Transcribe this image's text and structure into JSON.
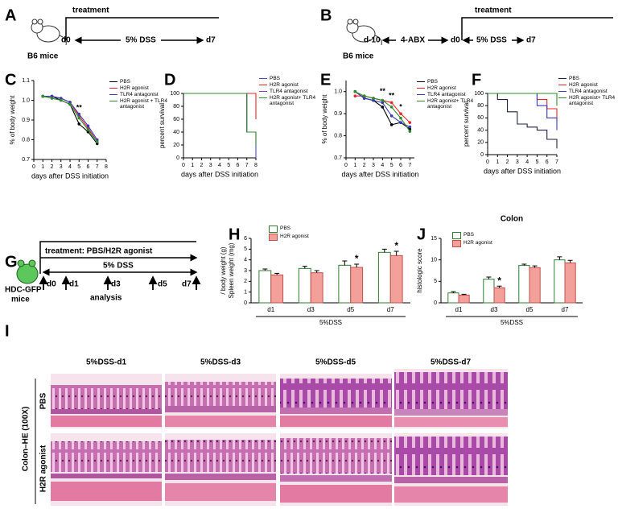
{
  "panels": {
    "A": {
      "label": "A",
      "mice": "B6 mice",
      "treatment": "treatment",
      "start": "d0",
      "regimen": "5% DSS",
      "end": "d7"
    },
    "B": {
      "label": "B",
      "mice": "B6 mice",
      "treatment": "treatment",
      "pre_start": "d-10",
      "pretreatment": "4-ABX",
      "start": "d0",
      "regimen": "5% DSS",
      "end": "d7"
    },
    "G": {
      "label": "G",
      "treatment": "treatment: PBS/H2R agonist",
      "regimen": "5% DSS",
      "days": [
        "d0",
        "d1",
        "d3",
        "d5",
        "d7"
      ],
      "analysis": "analysis",
      "mice": [
        "HDC-GFP",
        "mice"
      ]
    },
    "I": {
      "label": "I",
      "columns": [
        "5%DSS-d1",
        "5%DSS-d3",
        "5%DSS-d5",
        "5%DSS-d7"
      ],
      "rows": [
        "PBS",
        "H2R agonist"
      ],
      "stain": "Colon–HE (100X)"
    }
  },
  "chart_data": [
    {
      "panel": "C",
      "type": "line",
      "xlabel": "days after DSS initiation",
      "ylabel": "% of body weight",
      "x": [
        1,
        2,
        3,
        4,
        5,
        6,
        7
      ],
      "xlim": [
        0,
        8
      ],
      "xticks": [
        0,
        1,
        2,
        3,
        4,
        5,
        6,
        7,
        8
      ],
      "ylim": [
        0.7,
        1.1
      ],
      "yticks": [
        0.7,
        0.8,
        0.9,
        {
          "value": 1,
          "label": "1.0"
        },
        1.1
      ],
      "series": [
        {
          "name": "PBS",
          "color": "#000000",
          "values": [
            1.02,
            1.02,
            1.0,
            0.98,
            0.88,
            0.84,
            0.78
          ]
        },
        {
          "name": "H2R agonist",
          "color": "#e8262a",
          "values": [
            1.02,
            1.02,
            1.01,
            0.99,
            0.92,
            0.86,
            0.79
          ]
        },
        {
          "name": "TLR4 antagonist",
          "color": "#3a3ab8",
          "values": [
            1.02,
            1.02,
            1.01,
            0.99,
            0.93,
            0.87,
            0.8
          ]
        },
        {
          "name": "H2R agonist + TLR4 antagonist",
          "color": "#2e8b2e",
          "values": [
            1.02,
            1.01,
            1.0,
            0.98,
            0.91,
            0.85,
            0.79
          ]
        }
      ],
      "annotations": [
        {
          "text": "**",
          "x": 5,
          "y": 0.96,
          "color": "#3a3ab8"
        }
      ]
    },
    {
      "panel": "D",
      "type": "step",
      "xlabel": "days after DSS initiation",
      "ylabel": "percent survival",
      "x": [
        0,
        6,
        7,
        8
      ],
      "xlim": [
        0,
        8
      ],
      "xticks": [
        0,
        1,
        2,
        3,
        4,
        5,
        6,
        7,
        8
      ],
      "ylim": [
        0,
        100
      ],
      "yticks": [
        0,
        20,
        40,
        60,
        80,
        100
      ],
      "series": [
        {
          "name": "PBS",
          "color": "#4a4ac8",
          "values": [
            100,
            100,
            40,
            0
          ]
        },
        {
          "name": "H2R agonist",
          "color": "#e8262a",
          "values": [
            100,
            100,
            100,
            60
          ]
        },
        {
          "name": "TLR4 antagonist",
          "color": "#8a3ab8",
          "values": [
            100,
            100,
            40,
            40
          ]
        },
        {
          "name": "H2R agonist+ TLR4 antagonist",
          "color": "#2e8b2e",
          "values": [
            100,
            100,
            40,
            20
          ]
        }
      ]
    },
    {
      "panel": "E",
      "type": "line",
      "xlabel": "days after DSS initiation",
      "ylabel": "% of body weight",
      "x": [
        1,
        2,
        3,
        4,
        5,
        6,
        7
      ],
      "xlim": [
        0,
        7.5
      ],
      "xticks": [
        0,
        1,
        2,
        3,
        4,
        5,
        6,
        7
      ],
      "ylim": [
        0.7,
        1.05
      ],
      "yticks": [
        0.7,
        0.8,
        0.9,
        {
          "value": 1,
          "label": "1.0"
        }
      ],
      "series": [
        {
          "name": "PBS",
          "color": "#000000",
          "values": [
            1.0,
            0.97,
            0.96,
            0.93,
            0.85,
            0.86,
            0.83
          ]
        },
        {
          "name": "H2R agonist",
          "color": "#e8262a",
          "values": [
            0.98,
            0.98,
            0.97,
            0.96,
            0.95,
            0.9,
            0.86
          ]
        },
        {
          "name": "TLR4 antagonist",
          "color": "#3a3ab8",
          "values": [
            1.0,
            0.97,
            0.96,
            0.95,
            0.89,
            0.86,
            0.84
          ]
        },
        {
          "name": "H2R agonist+ TLR4 antagonist",
          "color": "#2e8b2e",
          "values": [
            1.0,
            0.98,
            0.97,
            0.96,
            0.93,
            0.88,
            0.82
          ]
        }
      ],
      "annotations": [
        {
          "text": "**",
          "x": 4,
          "y": 1.0,
          "color": "#e8262a"
        },
        {
          "text": "**",
          "x": 5,
          "y": 0.98,
          "color": "#2e8b2e"
        },
        {
          "text": "*",
          "x": 6,
          "y": 0.93,
          "color": "#2e8b2e"
        }
      ]
    },
    {
      "panel": "F",
      "type": "step",
      "xlabel": "days after DSS initiation",
      "ylabel": "percent survival",
      "x": [
        0,
        1,
        2,
        3,
        4,
        5,
        6,
        7
      ],
      "xlim": [
        0,
        7
      ],
      "xticks": [
        0,
        1,
        2,
        3,
        4,
        5,
        6,
        7
      ],
      "ylim": [
        0,
        100
      ],
      "yticks": [
        0,
        20,
        40,
        60,
        80,
        100
      ],
      "series": [
        {
          "name": "PBS",
          "color": "#222244",
          "values": [
            100,
            90,
            70,
            50,
            45,
            40,
            25,
            10
          ]
        },
        {
          "name": "H2R agonist",
          "color": "#e8262a",
          "values": [
            100,
            100,
            100,
            100,
            100,
            90,
            75,
            55
          ]
        },
        {
          "name": "TLR4 antagonist",
          "color": "#3a3ab8",
          "values": [
            100,
            100,
            100,
            100,
            100,
            80,
            60,
            40
          ]
        },
        {
          "name": "H2R agonist+ TLR4 antagonist",
          "color": "#2e8b2e",
          "values": [
            100,
            100,
            100,
            100,
            100,
            100,
            100,
            80
          ]
        }
      ]
    },
    {
      "panel": "H",
      "type": "bar",
      "xlabel": "5%DSS",
      "ylabel": [
        "Spleen weight (mg)",
        "/ body weight (g)"
      ],
      "categories": [
        "d1",
        "d3",
        "d5",
        "d7"
      ],
      "ylim": [
        0,
        6
      ],
      "yticks": [
        0,
        1,
        2,
        3,
        4,
        5,
        6
      ],
      "series": [
        {
          "name": "PBS",
          "color": "#ffffff",
          "edgecolor": "#2e7d32",
          "values": [
            3.0,
            3.2,
            3.5,
            4.7
          ],
          "errors": [
            0.15,
            0.2,
            0.4,
            0.3
          ],
          "significance": [
            null,
            null,
            null,
            null
          ]
        },
        {
          "name": "H2R agonist",
          "color": "#f4a09a",
          "edgecolor": "#c0504d",
          "values": [
            2.6,
            2.8,
            3.3,
            4.4
          ],
          "errors": [
            0.15,
            0.2,
            0.3,
            0.4
          ],
          "significance": [
            null,
            null,
            "*",
            "*"
          ]
        }
      ]
    },
    {
      "panel": "J",
      "type": "bar",
      "title": "Colon",
      "xlabel": "5%DSS",
      "ylabel": "histologic score",
      "categories": [
        "d1",
        "d3",
        "d5",
        "d7"
      ],
      "ylim": [
        0,
        15
      ],
      "yticks": [
        0,
        5,
        10,
        15
      ],
      "series": [
        {
          "name": "PBS",
          "color": "#ffffff",
          "edgecolor": "#2e7d32",
          "values": [
            2.3,
            5.5,
            8.7,
            10.0
          ],
          "errors": [
            0.3,
            0.5,
            0.3,
            0.7
          ],
          "significance": [
            null,
            null,
            null,
            null
          ]
        },
        {
          "name": "H2R agonist",
          "color": "#f4a09a",
          "edgecolor": "#c0504d",
          "values": [
            1.8,
            3.5,
            8.2,
            9.3
          ],
          "errors": [
            0.2,
            0.4,
            0.4,
            0.6
          ],
          "significance": [
            null,
            "*",
            null,
            null
          ]
        }
      ]
    }
  ]
}
